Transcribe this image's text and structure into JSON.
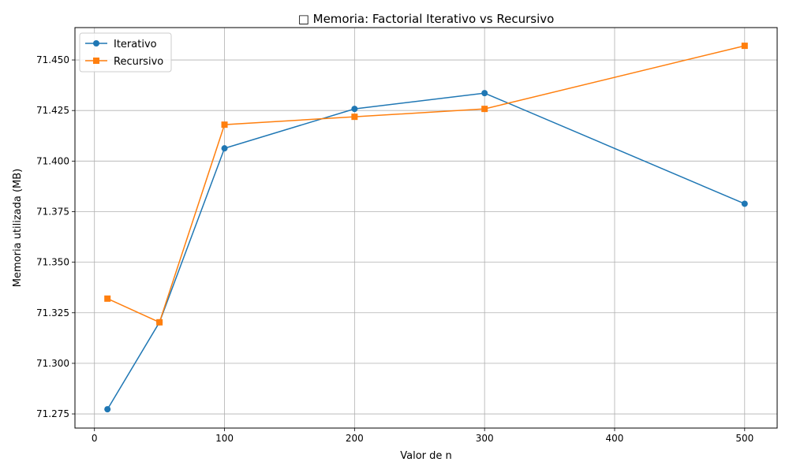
{
  "chart_data": {
    "type": "line",
    "title": "□ Memoria: Factorial Iterativo vs Recursivo",
    "xlabel": "Valor de n",
    "ylabel": "Memoria utilizada (MB)",
    "xlim": [
      -15,
      525
    ],
    "ylim": [
      71.268,
      71.466
    ],
    "xticks": [
      0,
      100,
      200,
      300,
      400,
      500
    ],
    "xtick_labels": [
      "0",
      "100",
      "200",
      "300",
      "400",
      "500"
    ],
    "yticks": [
      71.275,
      71.3,
      71.325,
      71.35,
      71.375,
      71.4,
      71.425,
      71.45
    ],
    "ytick_labels": [
      "71.275",
      "71.300",
      "71.325",
      "71.350",
      "71.375",
      "71.400",
      "71.425",
      "71.450"
    ],
    "grid": true,
    "legend_position": "upper-left",
    "x": [
      10,
      50,
      100,
      200,
      300,
      500
    ],
    "series": [
      {
        "name": "Iterativo",
        "color": "#1f77b4",
        "marker": "circle",
        "values": [
          71.2773,
          71.3203,
          71.4063,
          71.4258,
          71.4336,
          71.3789
        ]
      },
      {
        "name": "Recursivo",
        "color": "#ff7f0e",
        "marker": "square",
        "values": [
          71.332,
          71.3203,
          71.418,
          71.4219,
          71.4258,
          71.457
        ]
      }
    ]
  }
}
